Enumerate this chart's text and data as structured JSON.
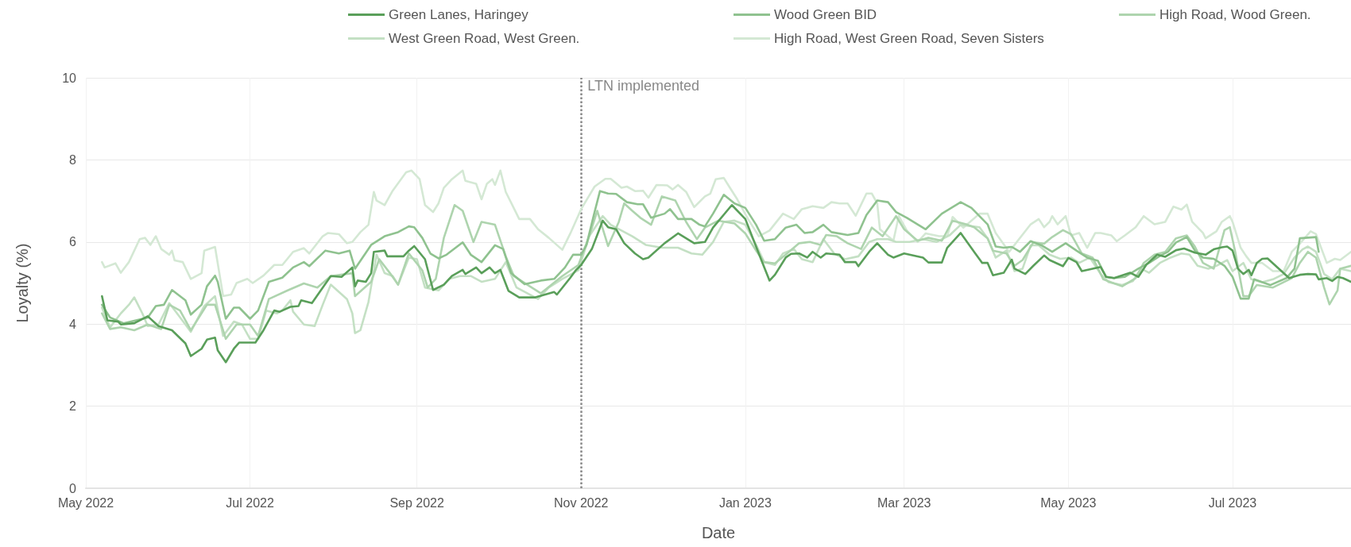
{
  "chart_data": {
    "type": "line",
    "xlabel": "Date",
    "ylabel": "Loyalty (%)",
    "legend": "top",
    "grid": true,
    "marker": "none",
    "line_style": "solid",
    "xlim": [
      "2022-05-01",
      "2023-08-14"
    ],
    "ylim": [
      0,
      10
    ],
    "yticks": [
      0,
      2,
      4,
      6,
      8,
      10
    ],
    "xticks": [
      {
        "value": "2022-05-01",
        "label": "May 2022"
      },
      {
        "value": "2022-07-01",
        "label": "Jul 2022"
      },
      {
        "value": "2022-09-01",
        "label": "Sep 2022"
      },
      {
        "value": "2022-11-01",
        "label": "Nov 2022"
      },
      {
        "value": "2023-01-01",
        "label": "Jan 2023"
      },
      {
        "value": "2023-03-01",
        "label": "Mar 2023"
      },
      {
        "value": "2023-05-01",
        "label": "May 2023"
      },
      {
        "value": "2023-07-01",
        "label": "Jul 2023"
      }
    ],
    "ref_lines": [
      {
        "axis": "x",
        "value": "2022-11-01",
        "label": "LTN implemented",
        "color": "#888888",
        "line_style": "dotted"
      }
    ],
    "series": [
      {
        "name": "Green Lanes, Haringey",
        "color": "#5a9f5a",
        "x": [
          "2022-05-07",
          "2022-05-09",
          "2022-05-13",
          "2022-05-14",
          "2022-05-19",
          "2022-05-24",
          "2022-05-28",
          "2022-06-02",
          "2022-06-07",
          "2022-06-09",
          "2022-06-13",
          "2022-06-15",
          "2022-06-18",
          "2022-06-19",
          "2022-06-22",
          "2022-06-25",
          "2022-06-27",
          "2022-07-03",
          "2022-07-06",
          "2022-07-10",
          "2022-07-12",
          "2022-07-16",
          "2022-07-19",
          "2022-07-20",
          "2022-07-24",
          "2022-07-31",
          "2022-08-04",
          "2022-08-08",
          "2022-08-09",
          "2022-08-10",
          "2022-08-13",
          "2022-08-15",
          "2022-08-16",
          "2022-08-20",
          "2022-08-21",
          "2022-08-27",
          "2022-08-29",
          "2022-08-31",
          "2022-09-04",
          "2022-09-07",
          "2022-09-11",
          "2022-09-14",
          "2022-09-18",
          "2022-09-19",
          "2022-09-23",
          "2022-09-25",
          "2022-09-28",
          "2022-09-30",
          "2022-10-02",
          "2022-10-05",
          "2022-10-09",
          "2022-10-15",
          "2022-10-22",
          "2022-10-23",
          "2022-10-28",
          "2022-10-30",
          "2022-11-01",
          "2022-11-05",
          "2022-11-09",
          "2022-11-11",
          "2022-11-14",
          "2022-11-17",
          "2022-11-21",
          "2022-11-24",
          "2022-11-26",
          "2022-12-02",
          "2022-12-07",
          "2022-12-13",
          "2022-12-17",
          "2022-12-20",
          "2022-12-27",
          "2023-01-01",
          "2023-01-07",
          "2023-01-10",
          "2023-01-12",
          "2023-01-16",
          "2023-01-18",
          "2023-01-21",
          "2023-01-24",
          "2023-01-26",
          "2023-01-29",
          "2023-01-31",
          "2023-02-05",
          "2023-02-07",
          "2023-02-11",
          "2023-02-12",
          "2023-02-16",
          "2023-02-19",
          "2023-02-23",
          "2023-02-25",
          "2023-03-01",
          "2023-03-08",
          "2023-03-10",
          "2023-03-15",
          "2023-03-17",
          "2023-03-22",
          "2023-03-27",
          "2023-03-30",
          "2023-04-01",
          "2023-04-03",
          "2023-04-07",
          "2023-04-10",
          "2023-04-11",
          "2023-04-15",
          "2023-04-18",
          "2023-04-22",
          "2023-04-24",
          "2023-04-29",
          "2023-05-01",
          "2023-05-04",
          "2023-05-06",
          "2023-05-13",
          "2023-05-15",
          "2023-05-18",
          "2023-05-24",
          "2023-05-27",
          "2023-05-30",
          "2023-06-03",
          "2023-06-06",
          "2023-06-10",
          "2023-06-13",
          "2023-06-17",
          "2023-06-21",
          "2023-06-24",
          "2023-06-27",
          "2023-06-29",
          "2023-07-01",
          "2023-07-03",
          "2023-07-05",
          "2023-07-07",
          "2023-07-08",
          "2023-07-10",
          "2023-07-12",
          "2023-07-14",
          "2023-07-22",
          "2023-07-26",
          "2023-07-29",
          "2023-08-01",
          "2023-08-02",
          "2023-08-05",
          "2023-08-07",
          "2023-08-09",
          "2023-08-11",
          "2023-08-14"
        ],
        "values": [
          4.68,
          4.09,
          4.06,
          3.99,
          4.02,
          4.19,
          3.95,
          3.85,
          3.53,
          3.22,
          3.4,
          3.62,
          3.67,
          3.36,
          3.07,
          3.4,
          3.55,
          3.55,
          3.85,
          4.33,
          4.3,
          4.42,
          4.44,
          4.58,
          4.51,
          5.17,
          5.15,
          5.38,
          4.92,
          5.06,
          5.03,
          5.24,
          5.76,
          5.79,
          5.65,
          5.65,
          5.79,
          5.9,
          5.58,
          4.83,
          4.96,
          5.17,
          5.32,
          5.22,
          5.38,
          5.24,
          5.38,
          5.24,
          5.32,
          4.81,
          4.65,
          4.65,
          4.78,
          4.72,
          5.13,
          5.31,
          5.44,
          5.83,
          6.52,
          6.36,
          6.31,
          5.97,
          5.72,
          5.58,
          5.62,
          5.97,
          6.21,
          5.97,
          6.0,
          6.35,
          6.9,
          6.56,
          5.55,
          5.06,
          5.2,
          5.62,
          5.71,
          5.72,
          5.62,
          5.76,
          5.62,
          5.72,
          5.69,
          5.51,
          5.51,
          5.41,
          5.76,
          5.97,
          5.69,
          5.62,
          5.72,
          5.62,
          5.5,
          5.5,
          5.86,
          6.22,
          5.76,
          5.49,
          5.49,
          5.19,
          5.25,
          5.57,
          5.35,
          5.22,
          5.42,
          5.67,
          5.56,
          5.41,
          5.61,
          5.51,
          5.29,
          5.39,
          5.15,
          5.12,
          5.25,
          5.15,
          5.45,
          5.69,
          5.64,
          5.8,
          5.84,
          5.74,
          5.69,
          5.82,
          5.87,
          5.89,
          5.79,
          5.35,
          5.22,
          5.32,
          5.19,
          5.49,
          5.59,
          5.6,
          5.12,
          5.2,
          5.22,
          5.21,
          5.09,
          5.12,
          5.05,
          5.15,
          5.12,
          5.03
        ]
      },
      {
        "name": "Wood Green BID",
        "color": "#8fc28f",
        "x": [
          "2022-05-07",
          "2022-05-10",
          "2022-05-15",
          "2022-05-24",
          "2022-05-27",
          "2022-05-30",
          "2022-06-02",
          "2022-06-07",
          "2022-06-09",
          "2022-06-13",
          "2022-06-15",
          "2022-06-18",
          "2022-06-19",
          "2022-06-22",
          "2022-06-25",
          "2022-06-27",
          "2022-07-01",
          "2022-07-04",
          "2022-07-08",
          "2022-07-13",
          "2022-07-17",
          "2022-07-21",
          "2022-07-23",
          "2022-07-29",
          "2022-08-03",
          "2022-08-07",
          "2022-08-09",
          "2022-08-15",
          "2022-08-20",
          "2022-08-25",
          "2022-08-29",
          "2022-08-31",
          "2022-09-03",
          "2022-09-06",
          "2022-09-09",
          "2022-09-12",
          "2022-09-18",
          "2022-09-21",
          "2022-09-25",
          "2022-09-30",
          "2022-10-03",
          "2022-10-06",
          "2022-10-11",
          "2022-10-17",
          "2022-10-22",
          "2022-10-26",
          "2022-10-29",
          "2022-11-01",
          "2022-11-03",
          "2022-11-06",
          "2022-11-08",
          "2022-11-11",
          "2022-11-14",
          "2022-11-18",
          "2022-11-22",
          "2022-11-24",
          "2022-11-27",
          "2022-12-02",
          "2022-12-04",
          "2022-12-07",
          "2022-12-12",
          "2022-12-15",
          "2022-12-17",
          "2022-12-20",
          "2022-12-24",
          "2022-12-28",
          "2023-01-01",
          "2023-01-05",
          "2023-01-08",
          "2023-01-12",
          "2023-01-16",
          "2023-01-20",
          "2023-01-23",
          "2023-01-26",
          "2023-01-30",
          "2023-02-02",
          "2023-02-08",
          "2023-02-12",
          "2023-02-15",
          "2023-02-19",
          "2023-02-23",
          "2023-02-26",
          "2023-03-02",
          "2023-03-09",
          "2023-03-15",
          "2023-03-22",
          "2023-03-26",
          "2023-04-01",
          "2023-04-04",
          "2023-04-07",
          "2023-04-10",
          "2023-04-13",
          "2023-04-17",
          "2023-04-21",
          "2023-04-25",
          "2023-04-30",
          "2023-05-04",
          "2023-05-08",
          "2023-05-12",
          "2023-05-15",
          "2023-05-18",
          "2023-05-22",
          "2023-05-27",
          "2023-05-31",
          "2023-06-04",
          "2023-06-07",
          "2023-06-10",
          "2023-06-14",
          "2023-06-17",
          "2023-06-20",
          "2023-06-24",
          "2023-06-28",
          "2023-07-01",
          "2023-07-04",
          "2023-07-07",
          "2023-07-09",
          "2023-07-15",
          "2023-07-21",
          "2023-07-24",
          "2023-07-26",
          "2023-08-01",
          "2023-08-02"
        ],
        "values": [
          4.47,
          4.16,
          4.02,
          4.16,
          4.44,
          4.47,
          4.83,
          4.58,
          4.23,
          4.47,
          4.92,
          5.18,
          5.03,
          4.13,
          4.4,
          4.4,
          4.13,
          4.33,
          5.03,
          5.13,
          5.38,
          5.51,
          5.41,
          5.79,
          5.72,
          5.79,
          5.35,
          5.93,
          6.14,
          6.24,
          6.38,
          6.36,
          6.1,
          5.72,
          5.6,
          5.69,
          5.99,
          5.69,
          5.51,
          5.92,
          5.83,
          5.24,
          4.97,
          5.06,
          5.1,
          5.38,
          5.69,
          5.69,
          5.93,
          6.73,
          7.24,
          7.18,
          7.17,
          6.97,
          6.92,
          6.92,
          6.59,
          6.69,
          6.8,
          6.56,
          6.56,
          6.42,
          6.38,
          6.69,
          7.15,
          6.94,
          6.83,
          6.42,
          6.03,
          6.07,
          6.35,
          6.42,
          6.22,
          6.24,
          6.42,
          6.24,
          6.17,
          6.22,
          6.66,
          7.01,
          6.97,
          6.73,
          6.59,
          6.31,
          6.69,
          6.97,
          6.83,
          6.43,
          5.89,
          5.86,
          5.88,
          5.76,
          6.02,
          5.92,
          5.76,
          5.97,
          5.79,
          5.62,
          5.54,
          5.15,
          5.12,
          5.15,
          5.35,
          5.49,
          5.66,
          5.76,
          5.99,
          6.12,
          5.79,
          5.62,
          5.59,
          5.42,
          5.15,
          4.62,
          4.62,
          5.09,
          4.95,
          5.12,
          5.35,
          6.09,
          6.12,
          5.76
        ]
      },
      {
        "name": "High Road, Wood Green.",
        "color": "#aed4ae",
        "x": [
          "2022-05-07",
          "2022-05-10",
          "2022-05-14",
          "2022-05-19",
          "2022-05-24",
          "2022-05-29",
          "2022-06-01",
          "2022-06-05",
          "2022-06-09",
          "2022-06-15",
          "2022-06-18",
          "2022-06-22",
          "2022-06-26",
          "2022-07-01",
          "2022-07-04",
          "2022-07-08",
          "2022-07-15",
          "2022-07-21",
          "2022-07-26",
          "2022-07-31",
          "2022-08-08",
          "2022-08-09",
          "2022-08-15",
          "2022-08-18",
          "2022-08-22",
          "2022-08-25",
          "2022-08-29",
          "2022-09-03",
          "2022-09-05",
          "2022-09-08",
          "2022-09-11",
          "2022-09-15",
          "2022-09-18",
          "2022-09-22",
          "2022-09-25",
          "2022-09-30",
          "2022-10-04",
          "2022-10-07",
          "2022-10-12",
          "2022-10-17",
          "2022-10-25",
          "2022-10-31",
          "2022-11-04",
          "2022-11-07",
          "2022-11-11",
          "2022-11-15",
          "2022-11-17",
          "2022-11-20",
          "2022-11-23",
          "2022-11-27",
          "2022-12-01",
          "2022-12-06",
          "2022-12-10",
          "2022-12-14",
          "2022-12-17",
          "2022-12-22",
          "2022-12-28",
          "2023-01-01",
          "2023-01-05",
          "2023-01-08",
          "2023-01-12",
          "2023-01-16",
          "2023-01-21",
          "2023-01-25",
          "2023-01-29",
          "2023-01-31",
          "2023-02-04",
          "2023-02-08",
          "2023-02-13",
          "2023-02-17",
          "2023-02-21",
          "2023-02-26",
          "2023-03-01",
          "2023-03-06",
          "2023-03-10",
          "2023-03-15",
          "2023-03-19",
          "2023-03-24",
          "2023-03-27",
          "2023-04-01",
          "2023-04-03",
          "2023-04-08",
          "2023-04-11",
          "2023-04-14",
          "2023-04-18",
          "2023-04-22",
          "2023-04-25",
          "2023-04-29",
          "2023-05-02",
          "2023-05-06",
          "2023-05-10",
          "2023-05-14",
          "2023-05-18",
          "2023-05-21",
          "2023-05-26",
          "2023-05-29",
          "2023-06-02",
          "2023-06-06",
          "2023-06-10",
          "2023-06-14",
          "2023-06-17",
          "2023-06-20",
          "2023-06-24",
          "2023-06-28",
          "2023-06-30",
          "2023-07-02",
          "2023-07-05",
          "2023-07-07",
          "2023-07-10",
          "2023-07-16",
          "2023-07-23",
          "2023-07-26",
          "2023-07-29",
          "2023-08-01",
          "2023-08-04",
          "2023-08-06",
          "2023-08-09",
          "2023-08-10",
          "2023-08-14"
        ],
        "values": [
          4.26,
          3.88,
          3.92,
          3.85,
          3.99,
          3.88,
          4.47,
          4.33,
          3.85,
          4.47,
          4.47,
          3.64,
          3.99,
          3.99,
          3.71,
          4.61,
          4.82,
          4.99,
          4.89,
          5.17,
          5.24,
          4.68,
          5.03,
          5.58,
          5.24,
          4.96,
          5.72,
          5.31,
          4.89,
          5.1,
          6.1,
          6.9,
          6.76,
          6.0,
          6.49,
          6.42,
          5.65,
          5.17,
          4.96,
          4.75,
          5.17,
          5.44,
          6.14,
          6.76,
          5.9,
          6.49,
          6.94,
          6.76,
          6.59,
          6.42,
          7.11,
          7.01,
          6.49,
          6.07,
          6.35,
          6.52,
          6.45,
          6.21,
          5.79,
          5.51,
          5.48,
          5.69,
          5.97,
          6.0,
          5.93,
          6.17,
          6.14,
          5.97,
          5.83,
          6.35,
          6.14,
          6.63,
          6.31,
          6.03,
          6.1,
          6.03,
          6.52,
          6.43,
          6.36,
          6.09,
          5.79,
          5.72,
          5.42,
          5.56,
          5.99,
          5.96,
          6.12,
          6.29,
          6.19,
          5.72,
          5.62,
          5.09,
          4.99,
          4.92,
          5.12,
          5.49,
          5.69,
          5.76,
          6.09,
          6.16,
          5.89,
          5.49,
          5.35,
          6.29,
          6.36,
          5.76,
          4.68,
          4.68,
          4.95,
          4.89,
          5.12,
          5.49,
          5.76,
          5.62,
          4.89,
          4.48,
          4.82,
          5.35,
          5.42
        ]
      },
      {
        "name": "West Green Road, West Green.",
        "color": "#c4e0c4",
        "x": [
          "2022-05-07",
          "2022-05-10",
          "2022-05-14",
          "2022-05-17",
          "2022-05-19",
          "2022-05-22",
          "2022-05-24",
          "2022-05-28",
          "2022-06-01",
          "2022-06-07",
          "2022-06-09",
          "2022-06-14",
          "2022-06-18",
          "2022-06-21",
          "2022-06-25",
          "2022-06-28",
          "2022-07-01",
          "2022-07-04",
          "2022-07-07",
          "2022-07-11",
          "2022-07-13",
          "2022-07-16",
          "2022-07-17",
          "2022-07-21",
          "2022-07-25",
          "2022-07-28",
          "2022-07-31",
          "2022-08-06",
          "2022-08-08",
          "2022-08-09",
          "2022-08-11",
          "2022-08-14",
          "2022-08-17",
          "2022-08-20",
          "2022-08-23",
          "2022-08-25",
          "2022-08-29",
          "2022-09-01",
          "2022-09-04",
          "2022-09-09",
          "2022-09-13",
          "2022-09-17",
          "2022-09-21",
          "2022-09-25",
          "2022-09-30",
          "2022-10-04",
          "2022-10-08",
          "2022-10-12",
          "2022-10-16",
          "2022-10-20",
          "2022-10-25",
          "2022-10-31",
          "2022-11-04",
          "2022-11-09",
          "2022-11-12",
          "2022-11-16",
          "2022-11-20",
          "2022-11-25",
          "2022-12-01",
          "2022-12-07",
          "2022-12-12",
          "2022-12-16",
          "2022-12-20",
          "2022-12-24",
          "2022-12-28",
          "2023-01-01",
          "2023-01-05",
          "2023-01-08",
          "2023-01-12",
          "2023-01-15",
          "2023-01-19",
          "2023-01-22",
          "2023-01-26",
          "2023-01-30",
          "2023-02-03",
          "2023-02-07",
          "2023-02-12",
          "2023-02-16",
          "2023-02-19",
          "2023-02-23",
          "2023-02-26",
          "2023-03-03",
          "2023-03-08",
          "2023-03-13",
          "2023-03-18",
          "2023-03-22",
          "2023-03-29",
          "2023-04-01",
          "2023-04-04",
          "2023-04-08",
          "2023-04-11",
          "2023-04-14",
          "2023-04-17",
          "2023-04-20",
          "2023-04-24",
          "2023-04-28",
          "2023-05-02",
          "2023-05-05",
          "2023-05-09",
          "2023-05-13",
          "2023-05-16",
          "2023-05-21",
          "2023-05-25",
          "2023-05-28",
          "2023-05-31",
          "2023-06-04",
          "2023-06-08",
          "2023-06-12",
          "2023-06-15",
          "2023-06-18",
          "2023-06-22",
          "2023-06-25",
          "2023-06-29",
          "2023-07-01",
          "2023-07-05",
          "2023-07-08",
          "2023-07-12",
          "2023-07-16",
          "2023-07-20",
          "2023-07-24",
          "2023-07-27",
          "2023-07-29",
          "2023-08-01",
          "2023-08-04",
          "2023-08-07",
          "2023-08-10",
          "2023-08-14"
        ],
        "values": [
          4.4,
          3.92,
          4.26,
          4.47,
          4.65,
          4.26,
          3.95,
          3.99,
          4.51,
          3.99,
          3.81,
          4.44,
          4.68,
          3.71,
          4.06,
          3.99,
          3.64,
          3.64,
          4.33,
          4.26,
          4.33,
          4.58,
          4.3,
          3.99,
          3.95,
          4.47,
          4.96,
          4.61,
          4.26,
          3.78,
          3.85,
          4.54,
          5.69,
          5.24,
          5.17,
          4.96,
          5.62,
          5.58,
          4.89,
          4.82,
          5.1,
          5.17,
          5.17,
          5.03,
          5.1,
          5.51,
          4.89,
          4.75,
          4.61,
          4.89,
          5.1,
          5.31,
          6.14,
          6.63,
          6.42,
          6.28,
          6.14,
          5.93,
          5.86,
          5.86,
          5.72,
          5.69,
          6.0,
          6.49,
          6.52,
          6.42,
          5.93,
          5.51,
          5.44,
          5.72,
          5.83,
          5.58,
          5.51,
          6.07,
          5.72,
          5.58,
          5.65,
          6.0,
          6.07,
          6.07,
          6.0,
          6.0,
          6.07,
          6.0,
          6.17,
          6.42,
          6.36,
          6.09,
          5.62,
          5.79,
          5.29,
          5.35,
          5.92,
          5.92,
          5.69,
          5.59,
          5.62,
          5.49,
          5.62,
          5.22,
          5.02,
          4.95,
          5.05,
          5.35,
          5.25,
          5.49,
          5.62,
          5.72,
          5.69,
          5.42,
          5.35,
          5.42,
          5.56,
          5.29,
          5.49,
          5.09,
          5.02,
          5.09,
          5.22,
          5.62,
          5.82,
          5.89,
          5.76,
          5.22,
          5.09,
          5.35,
          5.29
        ]
      },
      {
        "name": "High Road, West Green Road, Seven Sisters",
        "color": "#d4e8d4",
        "x": [
          "2022-05-07",
          "2022-05-08",
          "2022-05-12",
          "2022-05-14",
          "2022-05-17",
          "2022-05-21",
          "2022-05-23",
          "2022-05-25",
          "2022-05-27",
          "2022-05-29",
          "2022-06-01",
          "2022-06-02",
          "2022-06-03",
          "2022-06-06",
          "2022-06-09",
          "2022-06-13",
          "2022-06-14",
          "2022-06-18",
          "2022-06-21",
          "2022-06-24",
          "2022-06-26",
          "2022-06-30",
          "2022-07-02",
          "2022-07-06",
          "2022-07-10",
          "2022-07-13",
          "2022-07-17",
          "2022-07-21",
          "2022-07-23",
          "2022-07-28",
          "2022-07-30",
          "2022-08-03",
          "2022-08-06",
          "2022-08-08",
          "2022-08-11",
          "2022-08-14",
          "2022-08-16",
          "2022-08-17",
          "2022-08-20",
          "2022-08-23",
          "2022-08-28",
          "2022-08-30",
          "2022-09-02",
          "2022-09-04",
          "2022-09-07",
          "2022-09-09",
          "2022-09-11",
          "2022-09-14",
          "2022-09-18",
          "2022-09-19",
          "2022-09-23",
          "2022-09-25",
          "2022-09-27",
          "2022-09-29",
          "2022-09-30",
          "2022-10-02",
          "2022-10-04",
          "2022-10-09",
          "2022-10-13",
          "2022-10-16",
          "2022-10-20",
          "2022-10-25",
          "2022-10-28",
          "2022-11-01",
          "2022-11-06",
          "2022-11-10",
          "2022-11-12",
          "2022-11-16",
          "2022-11-18",
          "2022-11-21",
          "2022-11-24",
          "2022-11-26",
          "2022-11-29",
          "2022-12-03",
          "2022-12-05",
          "2022-12-07",
          "2022-12-10",
          "2022-12-13",
          "2022-12-17",
          "2022-12-19",
          "2022-12-21",
          "2022-12-24",
          "2022-12-26",
          "2022-12-29",
          "2023-01-02",
          "2023-01-06",
          "2023-01-10",
          "2023-01-15",
          "2023-01-19",
          "2023-01-22",
          "2023-01-26",
          "2023-01-30",
          "2023-02-02",
          "2023-02-05",
          "2023-02-08",
          "2023-02-11",
          "2023-02-15",
          "2023-02-17",
          "2023-02-19",
          "2023-02-20",
          "2023-02-25",
          "2023-02-27",
          "2023-03-02",
          "2023-03-06",
          "2023-03-09",
          "2023-03-14",
          "2023-03-17",
          "2023-03-19",
          "2023-03-23",
          "2023-03-29",
          "2023-04-01",
          "2023-04-04",
          "2023-04-09",
          "2023-04-17",
          "2023-04-20",
          "2023-04-22",
          "2023-04-24",
          "2023-04-25",
          "2023-04-27",
          "2023-04-30",
          "2023-05-02",
          "2023-05-05",
          "2023-05-08",
          "2023-05-11",
          "2023-05-13",
          "2023-05-17",
          "2023-05-19",
          "2023-05-22",
          "2023-05-26",
          "2023-05-29",
          "2023-06-02",
          "2023-06-06",
          "2023-06-09",
          "2023-06-12",
          "2023-06-14",
          "2023-06-16",
          "2023-06-20",
          "2023-06-21",
          "2023-06-25",
          "2023-06-27",
          "2023-06-30",
          "2023-07-01",
          "2023-07-04",
          "2023-07-06",
          "2023-07-08",
          "2023-07-12",
          "2023-07-16",
          "2023-07-20",
          "2023-07-23",
          "2023-07-26",
          "2023-07-30",
          "2023-08-01",
          "2023-08-05",
          "2023-08-08",
          "2023-08-10",
          "2023-08-14"
        ],
        "values": [
          5.51,
          5.38,
          5.48,
          5.25,
          5.51,
          6.07,
          6.1,
          5.93,
          6.14,
          5.83,
          5.69,
          5.79,
          5.55,
          5.51,
          5.1,
          5.24,
          5.79,
          5.88,
          4.68,
          4.72,
          5.0,
          5.1,
          5.0,
          5.18,
          5.44,
          5.44,
          5.76,
          5.85,
          5.72,
          6.14,
          6.22,
          6.19,
          5.97,
          6.0,
          6.24,
          6.42,
          7.22,
          7.01,
          6.9,
          7.25,
          7.7,
          7.74,
          7.53,
          6.9,
          6.73,
          6.94,
          7.32,
          7.53,
          7.74,
          7.49,
          7.42,
          7.04,
          7.42,
          7.53,
          7.39,
          7.74,
          7.22,
          6.56,
          6.56,
          6.31,
          6.1,
          5.81,
          6.21,
          6.8,
          7.35,
          7.54,
          7.54,
          7.32,
          7.35,
          7.24,
          7.25,
          7.08,
          7.39,
          7.38,
          7.28,
          7.39,
          7.22,
          6.85,
          7.11,
          7.18,
          7.53,
          7.56,
          7.35,
          7.04,
          6.56,
          6.14,
          6.28,
          6.69,
          6.56,
          6.8,
          6.87,
          6.83,
          6.97,
          6.94,
          6.94,
          6.64,
          7.18,
          7.18,
          6.94,
          6.31,
          6.03,
          6.63,
          6.28,
          6.0,
          6.21,
          6.14,
          6.14,
          6.61,
          6.35,
          6.69,
          6.69,
          6.22,
          5.76,
          6.43,
          6.56,
          6.36,
          6.49,
          6.63,
          6.43,
          6.63,
          6.16,
          6.22,
          5.86,
          6.22,
          6.22,
          6.16,
          6.02,
          6.16,
          6.36,
          6.63,
          6.43,
          6.49,
          6.86,
          6.79,
          6.91,
          6.49,
          6.22,
          6.09,
          6.26,
          6.49,
          6.63,
          6.49,
          5.86,
          5.66,
          5.49,
          5.49,
          5.29,
          5.29,
          5.76,
          5.96,
          6.26,
          6.19,
          5.49,
          5.59,
          5.56,
          5.76
        ]
      }
    ]
  }
}
